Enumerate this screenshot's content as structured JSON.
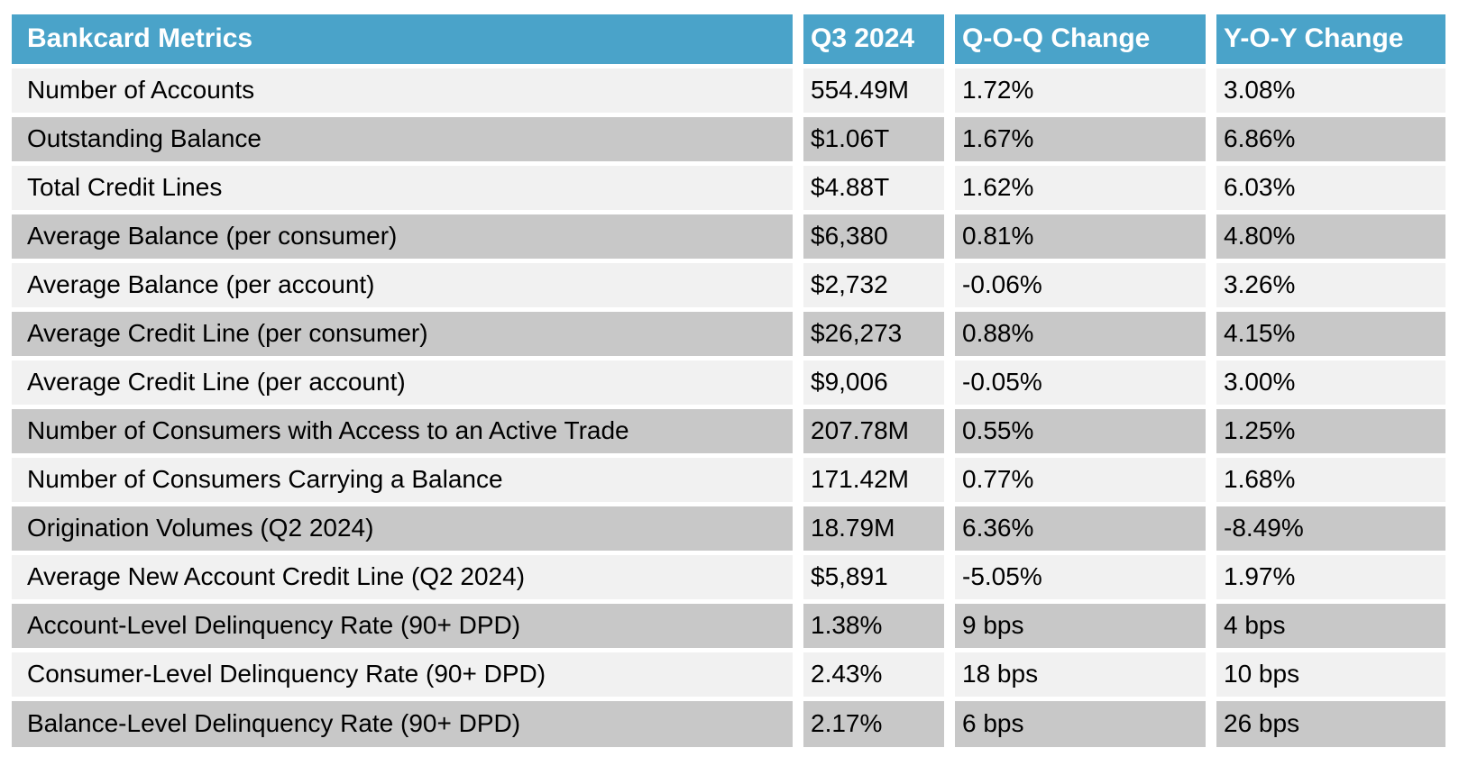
{
  "chart_data": {
    "type": "table",
    "title": "Bankcard Metrics",
    "columns": [
      "Bankcard Metrics",
      "Q3 2024",
      "Q-O-Q Change",
      "Y-O-Y Change"
    ],
    "rows": [
      [
        "Number of Accounts",
        "554.49M",
        "1.72%",
        "3.08%"
      ],
      [
        "Outstanding Balance",
        "$1.06T",
        "1.67%",
        "6.86%"
      ],
      [
        "Total Credit Lines",
        "$4.88T",
        "1.62%",
        "6.03%"
      ],
      [
        "Average Balance (per consumer)",
        "$6,380",
        "0.81%",
        "4.80%"
      ],
      [
        "Average Balance (per account)",
        "$2,732",
        "-0.06%",
        "3.26%"
      ],
      [
        "Average Credit Line (per consumer)",
        "$26,273",
        "0.88%",
        "4.15%"
      ],
      [
        "Average Credit Line (per account)",
        "$9,006",
        "-0.05%",
        "3.00%"
      ],
      [
        "Number of Consumers with Access to an Active Trade",
        "207.78M",
        "0.55%",
        "1.25%"
      ],
      [
        "Number of Consumers Carrying a Balance",
        "171.42M",
        "0.77%",
        "1.68%"
      ],
      [
        "Origination Volumes (Q2 2024)",
        "18.79M",
        "6.36%",
        "-8.49%"
      ],
      [
        "Average New Account Credit Line (Q2 2024)",
        "$5,891",
        "-5.05%",
        "1.97%"
      ],
      [
        "Account-Level Delinquency Rate (90+ DPD)",
        "1.38%",
        "9 bps",
        "4 bps"
      ],
      [
        "Consumer-Level Delinquency Rate (90+ DPD)",
        "2.43%",
        "18 bps",
        "10 bps"
      ],
      [
        "Balance-Level Delinquency Rate (90+ DPD)",
        "2.17%",
        "6 bps",
        "26 bps"
      ]
    ],
    "layout": {
      "striped": true,
      "first_row_shade": "light",
      "value_alignment": "left"
    }
  },
  "colors": {
    "header_bg": "#4aa3c9",
    "header_text": "#ffffff",
    "row_light": "#f1f1f1",
    "row_dark": "#c8c8c8",
    "text": "#000000",
    "separator": "#ffffff"
  }
}
